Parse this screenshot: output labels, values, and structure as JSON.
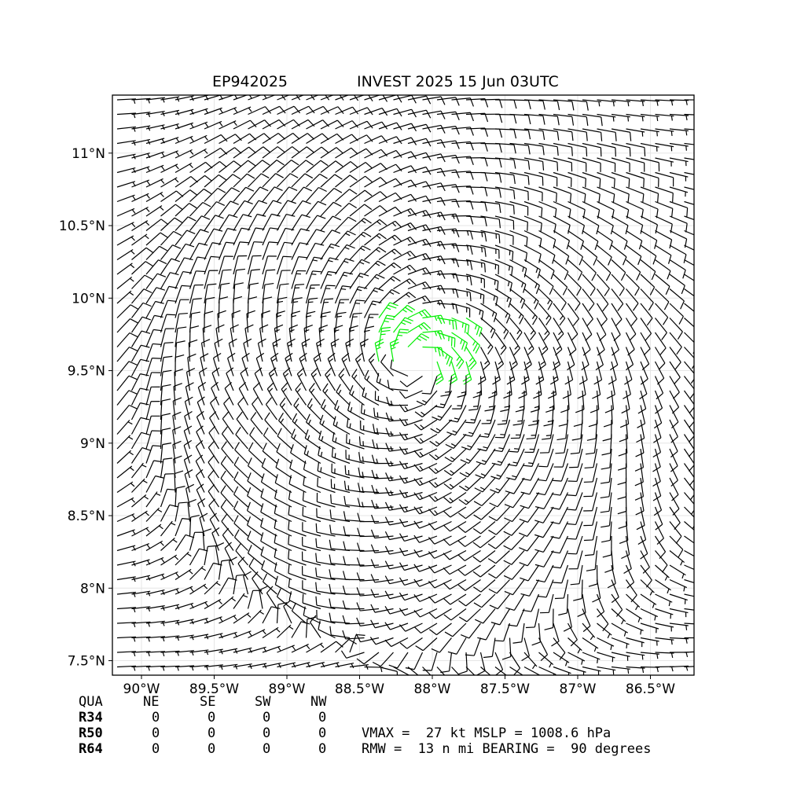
{
  "title": {
    "storm_id": "EP942025",
    "main": "INVEST 2025 15 Jun 03UTC"
  },
  "chart_data": {
    "type": "wind-barb map",
    "x_ticks": [
      "90°W",
      "89.5°W",
      "89°W",
      "88.5°W",
      "88°W",
      "87.5°W",
      "87°W",
      "86.5°W"
    ],
    "x_tick_values": [
      -90.0,
      -89.5,
      -89.0,
      -88.5,
      -88.0,
      -87.5,
      -87.0,
      -86.5
    ],
    "y_ticks": [
      "7.5°N",
      "8°N",
      "8.5°N",
      "9°N",
      "9.5°N",
      "10°N",
      "10.5°N",
      "11°N"
    ],
    "y_tick_values": [
      7.5,
      8.0,
      8.5,
      9.0,
      9.5,
      10.0,
      10.5,
      11.0
    ],
    "xlim": [
      -90.2,
      -86.2
    ],
    "ylim": [
      7.4,
      11.4
    ],
    "center": {
      "lon": -88.1,
      "lat": 9.55
    },
    "grid": true,
    "highlight_color": "#00ee00",
    "barb_color": "#000000"
  },
  "table": {
    "header": [
      "QUA",
      "NE",
      "SE",
      "SW",
      "NW"
    ],
    "rows": [
      {
        "label": "R34",
        "values": [
          "0",
          "0",
          "0",
          "0"
        ]
      },
      {
        "label": "R50",
        "values": [
          "0",
          "0",
          "0",
          "0"
        ]
      },
      {
        "label": "R64",
        "values": [
          "0",
          "0",
          "0",
          "0"
        ]
      }
    ]
  },
  "info": {
    "line1": "VMAX =  27 kt MSLP = 1008.6 hPa",
    "line2": "RMW =  13 n mi BEARING =  90 degrees"
  }
}
